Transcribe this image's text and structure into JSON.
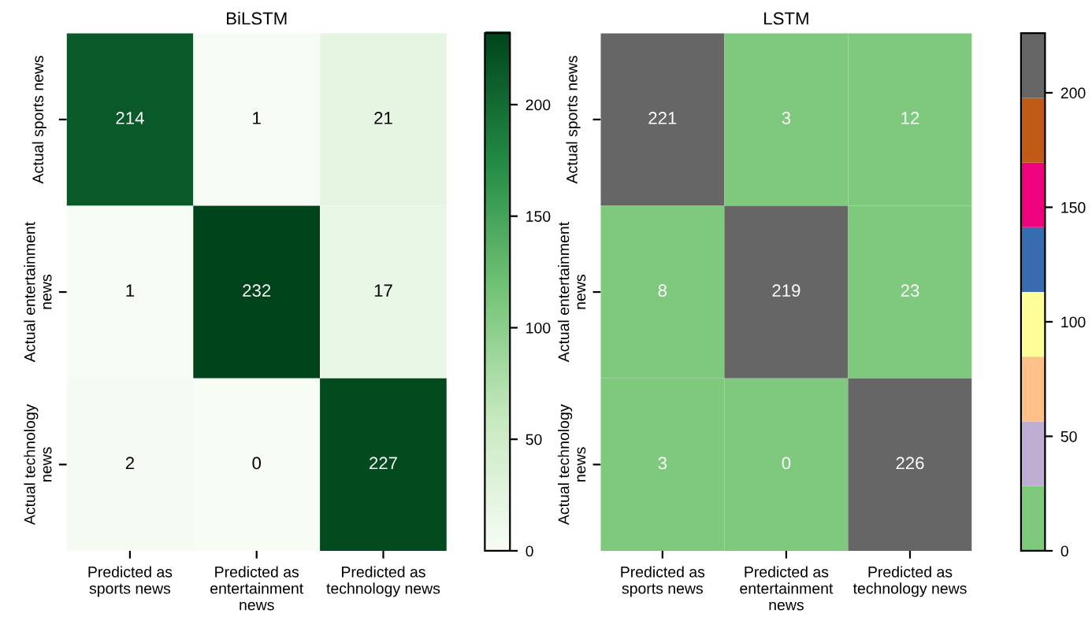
{
  "chart_data": [
    {
      "type": "heatmap",
      "title": "BiLSTM",
      "categories": [
        "Predicted as\nsports news",
        "Predicted as\nentertainment\nnews",
        "Predicted as\ntechnology news"
      ],
      "y_categories": [
        "Actual sports news",
        "Actual entertainment\nnews",
        "Actual technology\nnews"
      ],
      "cells": [
        [
          214,
          1,
          21
        ],
        [
          1,
          232,
          17
        ],
        [
          2,
          0,
          227
        ]
      ],
      "data_labels": true,
      "clim": [
        0,
        232
      ],
      "cticks": [
        0,
        50,
        100,
        150,
        200
      ],
      "colors": [
        "#f7fcf5",
        "#c7e9c0",
        "#74c476",
        "#238b45",
        "#00441b"
      ]
    },
    {
      "type": "heatmap",
      "title": "LSTM",
      "categories": [
        "Predicted as\nsports news",
        "Predicted as\nentertainment\nnews",
        "Predicted as\ntechnology news"
      ],
      "y_categories": [
        "Actual sports news",
        "Actual entertainment\nnews",
        "Actual technology\nnews"
      ],
      "cells": [
        [
          221,
          3,
          12
        ],
        [
          8,
          219,
          23
        ],
        [
          3,
          0,
          226
        ]
      ],
      "data_labels": true,
      "clim": [
        0,
        226
      ],
      "cticks": [
        0,
        50,
        100,
        150,
        200
      ],
      "colors": [
        "#7fc97f",
        "#beaed4",
        "#fdc086",
        "#ffff99",
        "#386cb0",
        "#f0027f",
        "#bf5b17",
        "#666666"
      ]
    }
  ]
}
